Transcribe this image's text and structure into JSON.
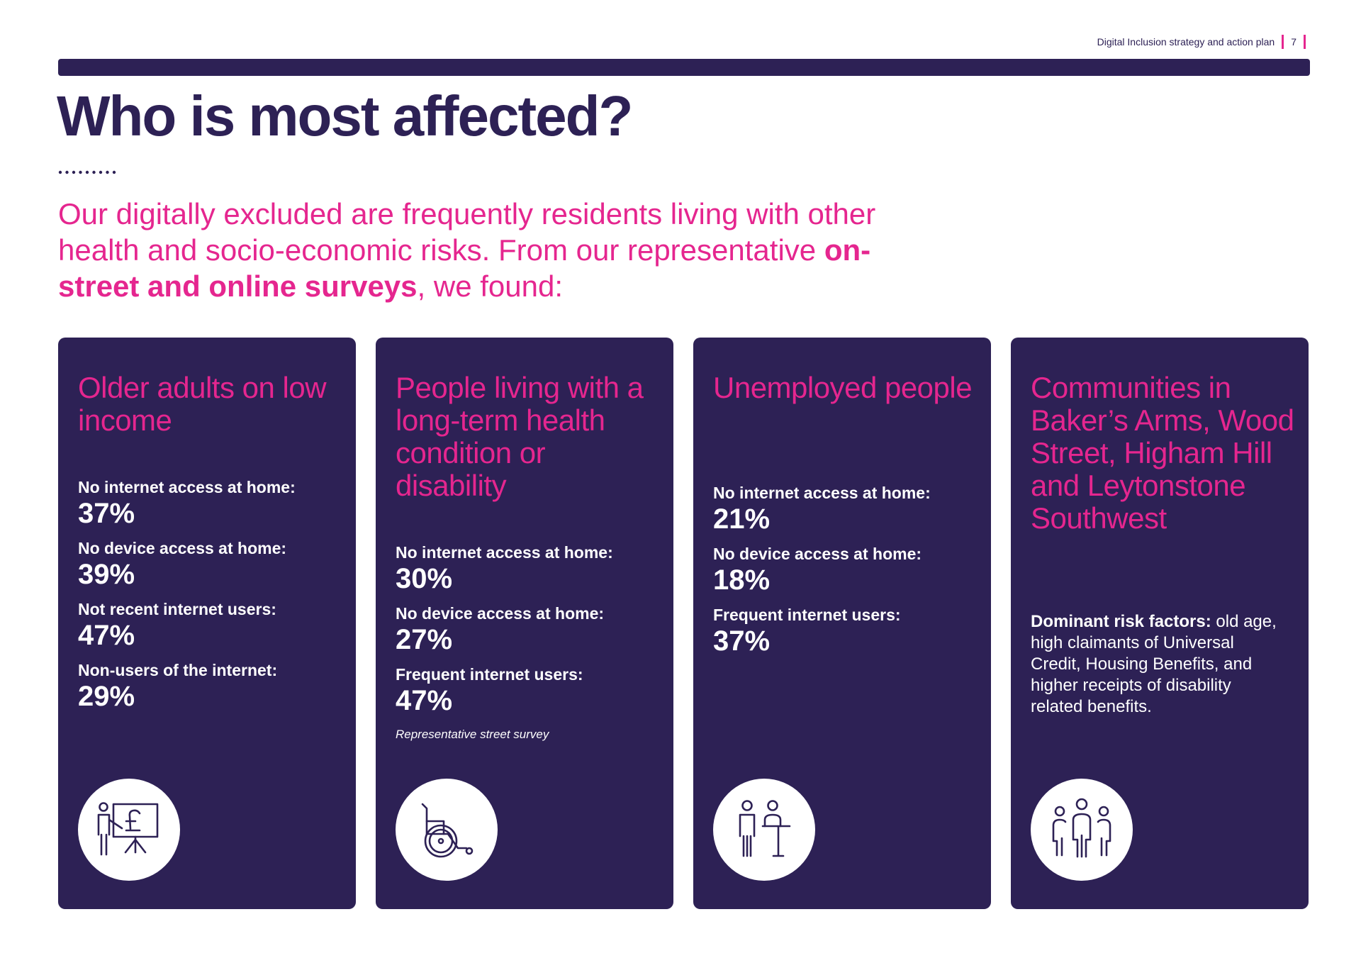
{
  "running_header": {
    "doc_title": "Digital Inclusion strategy and action plan",
    "page_number": "7"
  },
  "title": "Who is most affected?",
  "intro": {
    "before": "Our digitally excluded are frequently residents living with other health and socio-economic risks. From our representative ",
    "emphasis": "on-street and online surveys",
    "after": ", we found:"
  },
  "colors": {
    "navy": "#2d2155",
    "pink": "#e5268f",
    "white": "#ffffff"
  },
  "cards": [
    {
      "title": "Older adults on low income",
      "icon": "presentation-pound-icon",
      "stats": [
        {
          "label": "No internet access at home:",
          "value": "37%"
        },
        {
          "label": "No device access at home:",
          "value": "39%"
        },
        {
          "label": "Not recent internet users:",
          "value": "47%"
        },
        {
          "label": "Non-users of the internet:",
          "value": "29%"
        }
      ]
    },
    {
      "title": "People living with a long-term health condition or disability",
      "icon": "wheelchair-icon",
      "stats": [
        {
          "label": "No internet access at home:",
          "value": "30%"
        },
        {
          "label": "No device access at home:",
          "value": "27%"
        },
        {
          "label": "Frequent internet users:",
          "value": "47%"
        }
      ],
      "note": "Representative street survey"
    },
    {
      "title": "Unemployed people",
      "icon": "job-interview-icon",
      "stats": [
        {
          "label": "No internet access at home:",
          "value": "21%"
        },
        {
          "label": "No device access at home:",
          "value": "18%"
        },
        {
          "label": "Frequent internet users:",
          "value": "37%"
        }
      ]
    },
    {
      "title": "Communities in Baker’s Arms, Wood Street, Higham Hill and Leytonstone Southwest",
      "icon": "community-group-icon",
      "risk_label": "Dominant risk factors:",
      "risk_text": " old age, high claimants of Universal Credit, Housing Benefits, and higher receipts of disability related benefits."
    }
  ]
}
